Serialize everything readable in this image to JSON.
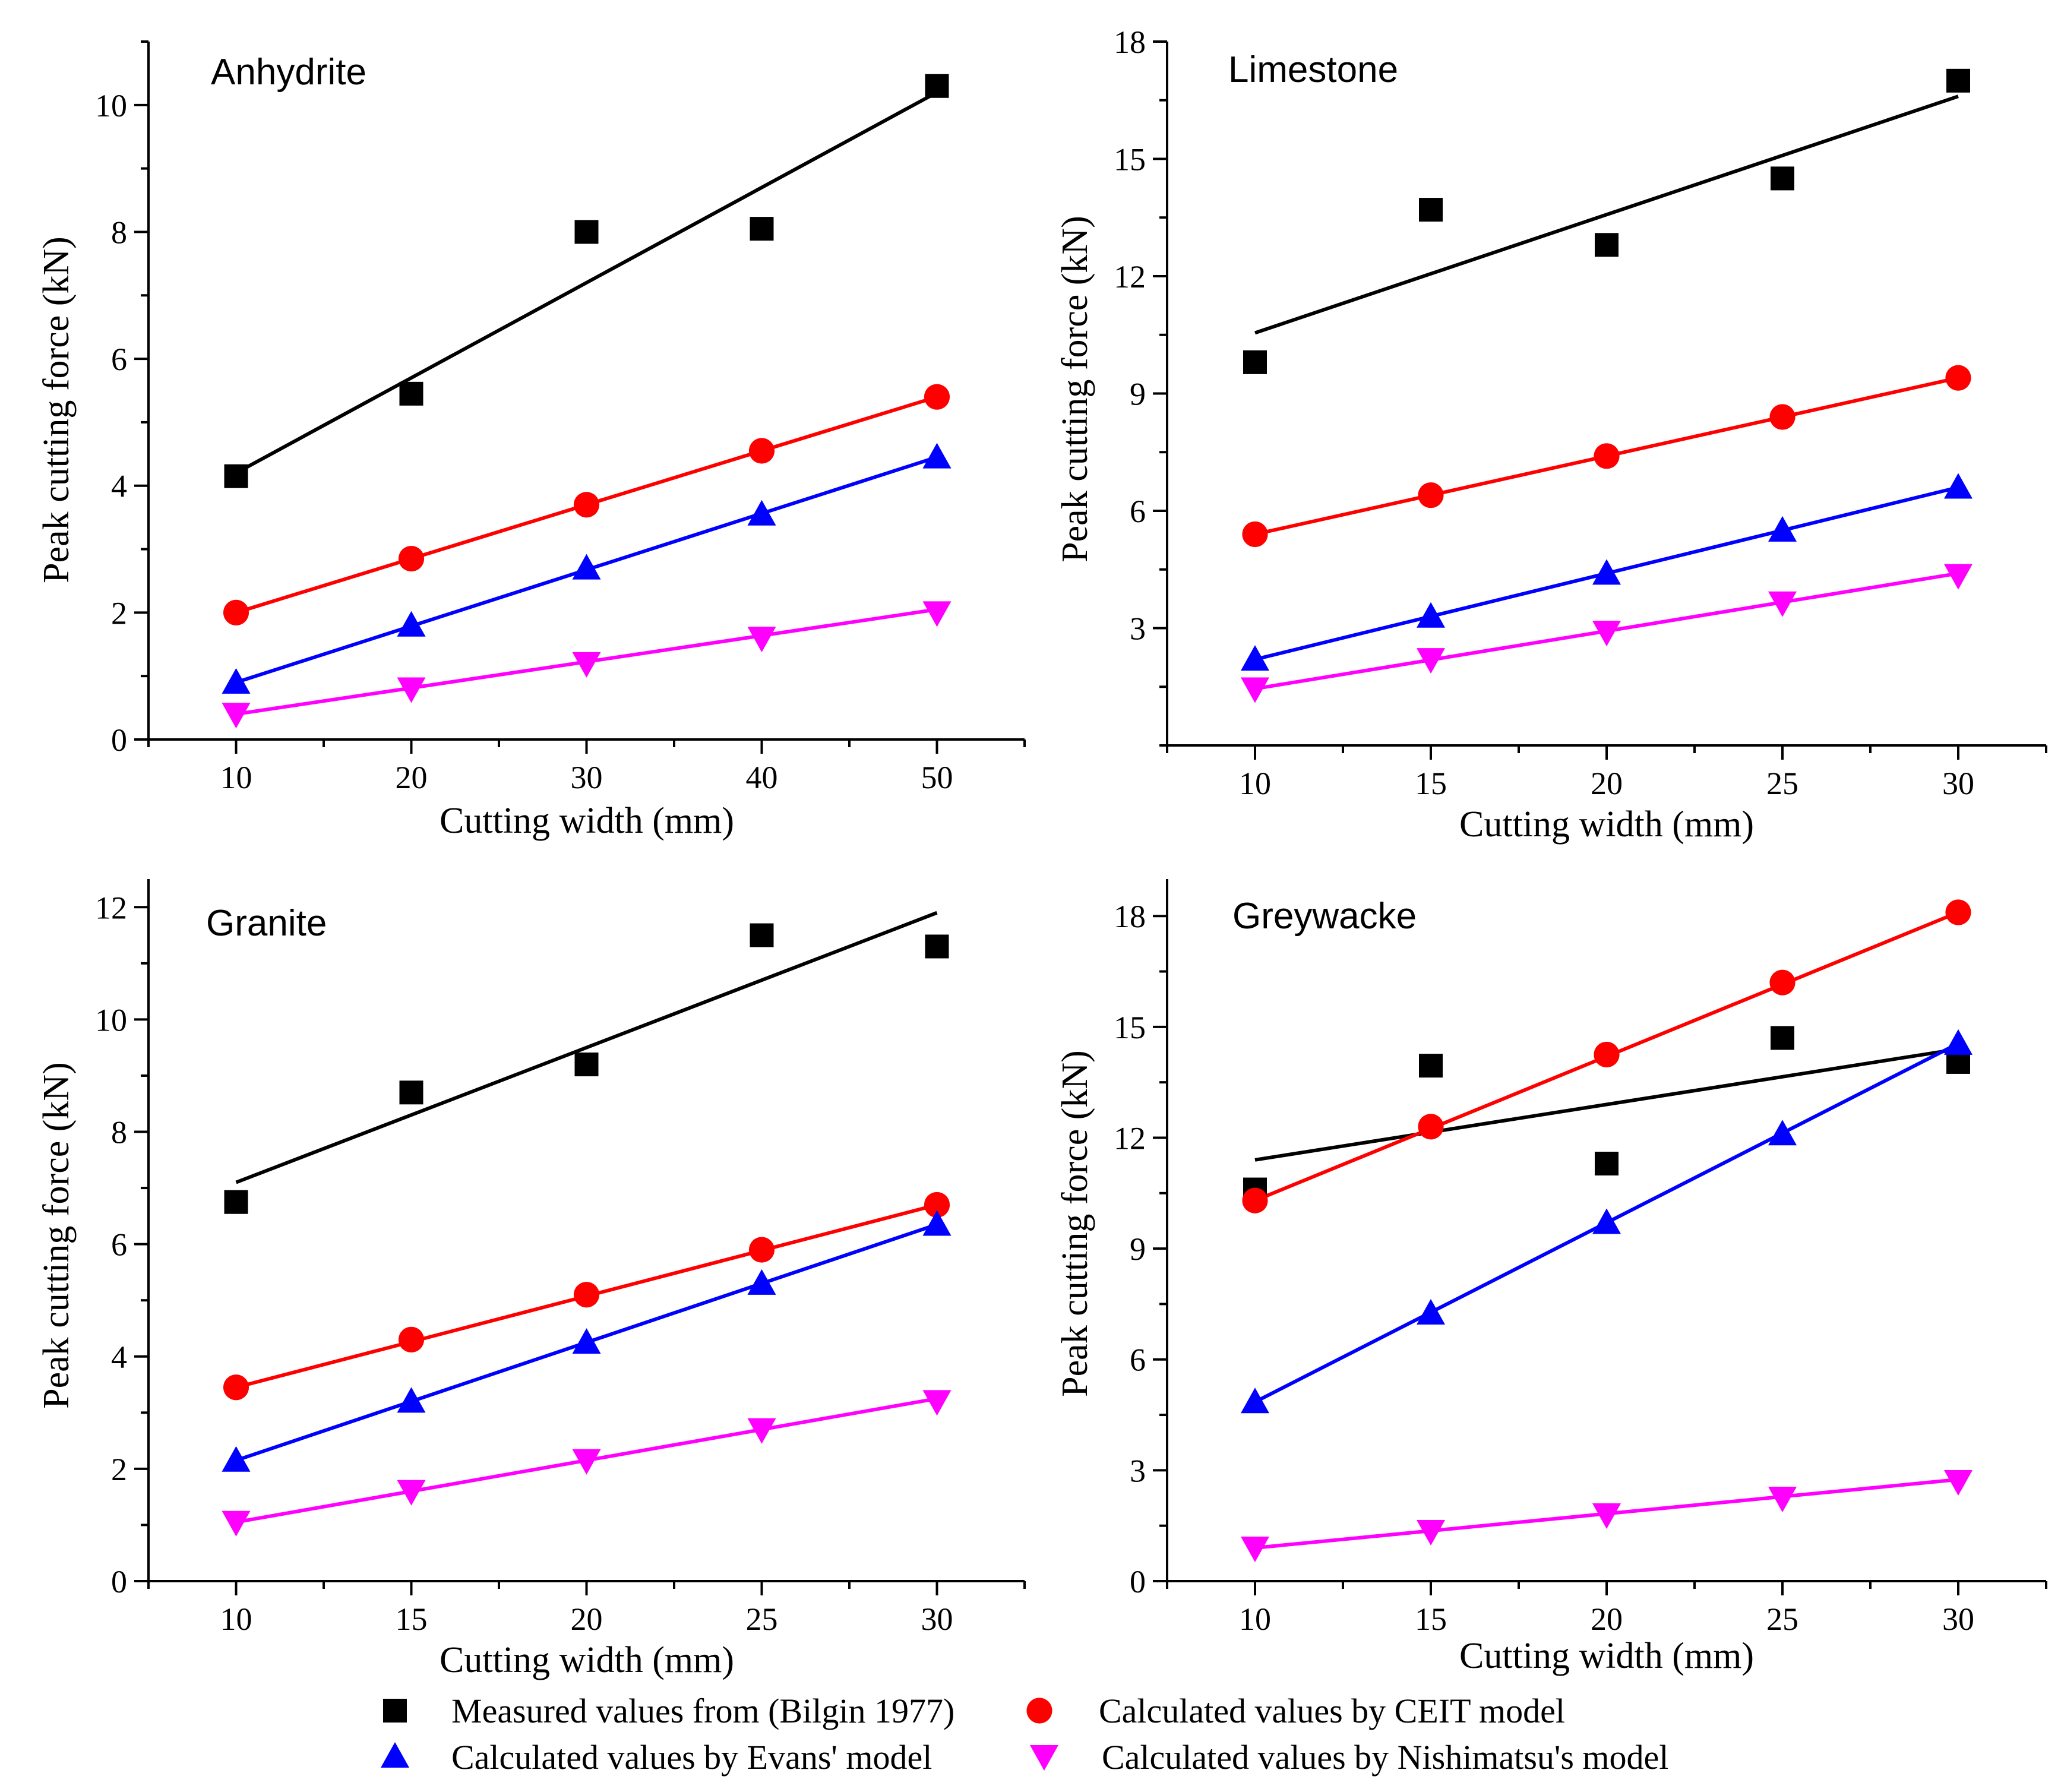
{
  "series_styles": [
    {
      "name": "Measured values from (Bilgin 1977)",
      "color": "#000000",
      "marker": "square"
    },
    {
      "name": "Calculated values by CEIT model",
      "color": "#ff0000",
      "marker": "circle"
    },
    {
      "name": "Calculated values by  Evans' model",
      "color": "#0000ff",
      "marker": "triangle-up"
    },
    {
      "name": "Calculated values by Nishimatsu's model",
      "color": "#ff00ff",
      "marker": "triangle-down"
    }
  ],
  "chart_data": [
    {
      "type": "scatter",
      "title": "Anhydrite",
      "xlabel": "Cutting width (mm)",
      "ylabel": "Peak cutting force (kN)",
      "xlim": [
        5,
        55
      ],
      "ylim": [
        0,
        11
      ],
      "xticks": [
        10,
        20,
        30,
        40,
        50
      ],
      "yticks": [
        0,
        2,
        4,
        6,
        8,
        10
      ],
      "x": [
        10,
        20,
        30,
        40,
        50
      ],
      "series": [
        {
          "name": "Measured values from (Bilgin 1977)",
          "values": [
            4.15,
            5.45,
            8.0,
            8.05,
            10.3
          ],
          "fit": [
            4.2,
            10.2
          ]
        },
        {
          "name": "Calculated values by CEIT model",
          "values": [
            2.0,
            2.85,
            3.7,
            4.55,
            5.4
          ],
          "fit": [
            2.0,
            5.4
          ]
        },
        {
          "name": "Calculated values by  Evans' model",
          "values": [
            0.9,
            1.8,
            2.7,
            3.55,
            4.45
          ],
          "fit": [
            0.9,
            4.45
          ]
        },
        {
          "name": "Calculated values by Nishimatsu's model",
          "values": [
            0.4,
            0.8,
            1.2,
            1.6,
            2.0
          ],
          "fit": [
            0.4,
            2.05
          ]
        }
      ]
    },
    {
      "type": "scatter",
      "title": "Limestone",
      "xlabel": "Cutting width (mm)",
      "ylabel": "Peak cutting force (kN)",
      "xlim": [
        7.5,
        32.5
      ],
      "ylim": [
        0,
        18
      ],
      "xticks": [
        10,
        15,
        20,
        25,
        30
      ],
      "yticks": [
        3,
        6,
        9,
        12,
        15,
        18
      ],
      "x": [
        10,
        15,
        20,
        25,
        30
      ],
      "series": [
        {
          "name": "Measured values from (Bilgin 1977)",
          "values": [
            9.8,
            13.7,
            12.8,
            14.5,
            17.0
          ],
          "fit": [
            10.55,
            16.6
          ]
        },
        {
          "name": "Calculated values by CEIT model",
          "values": [
            5.4,
            6.4,
            7.4,
            8.4,
            9.4
          ],
          "fit": [
            5.4,
            9.4
          ]
        },
        {
          "name": "Calculated values by  Evans' model",
          "values": [
            2.2,
            3.3,
            4.4,
            5.5,
            6.6
          ],
          "fit": [
            2.2,
            6.6
          ]
        },
        {
          "name": "Calculated values by Nishimatsu's model",
          "values": [
            1.45,
            2.2,
            2.9,
            3.65,
            4.35
          ],
          "fit": [
            1.45,
            4.4
          ]
        }
      ]
    },
    {
      "type": "scatter",
      "title": "Granite",
      "xlabel": "Cutting width (mm)",
      "ylabel": "Peak cutting force (kN)",
      "xlim": [
        7.5,
        32.5
      ],
      "ylim": [
        0,
        12.5
      ],
      "xticks": [
        10,
        15,
        20,
        25,
        30
      ],
      "yticks": [
        0,
        2,
        4,
        6,
        8,
        10,
        12
      ],
      "x": [
        10,
        15,
        20,
        25,
        30
      ],
      "series": [
        {
          "name": "Measured values from (Bilgin 1977)",
          "values": [
            6.75,
            8.7,
            9.2,
            11.5,
            11.3
          ],
          "fit": [
            7.1,
            11.9
          ]
        },
        {
          "name": "Calculated values by CEIT model",
          "values": [
            3.45,
            4.3,
            5.1,
            5.9,
            6.7
          ],
          "fit": [
            3.45,
            6.7
          ]
        },
        {
          "name": "Calculated values by  Evans' model",
          "values": [
            2.15,
            3.2,
            4.25,
            5.3,
            6.35
          ],
          "fit": [
            2.15,
            6.35
          ]
        },
        {
          "name": "Calculated values by Nishimatsu's model",
          "values": [
            1.05,
            1.6,
            2.15,
            2.7,
            3.2
          ],
          "fit": [
            1.05,
            3.25
          ]
        }
      ]
    },
    {
      "type": "scatter",
      "title": "Greywacke",
      "xlabel": "Cutting width (mm)",
      "ylabel": "Peak cutting force (kN)",
      "xlim": [
        7.5,
        32.5
      ],
      "ylim": [
        0,
        19
      ],
      "xticks": [
        10,
        15,
        20,
        25,
        30
      ],
      "yticks": [
        0,
        3,
        6,
        9,
        12,
        15,
        18
      ],
      "x": [
        10,
        15,
        20,
        25,
        30
      ],
      "series": [
        {
          "name": "Measured values from (Bilgin 1977)",
          "values": [
            10.6,
            13.95,
            11.3,
            14.7,
            14.05
          ],
          "fit": [
            11.4,
            14.4
          ]
        },
        {
          "name": "Calculated values by CEIT model",
          "values": [
            10.3,
            12.3,
            14.25,
            16.2,
            18.1
          ],
          "fit": [
            10.3,
            18.1
          ]
        },
        {
          "name": "Calculated values by  Evans' model",
          "values": [
            4.85,
            7.25,
            9.7,
            12.1,
            14.55
          ],
          "fit": [
            4.85,
            14.55
          ]
        },
        {
          "name": "Calculated values by Nishimatsu's model",
          "values": [
            0.9,
            1.35,
            1.8,
            2.25,
            2.7
          ],
          "fit": [
            0.9,
            2.75
          ]
        }
      ]
    }
  ],
  "legend": {
    "items": [
      "Measured values from (Bilgin 1977)",
      "Calculated values by CEIT model",
      "Calculated values by  Evans' model",
      "Calculated values by Nishimatsu's model"
    ]
  }
}
